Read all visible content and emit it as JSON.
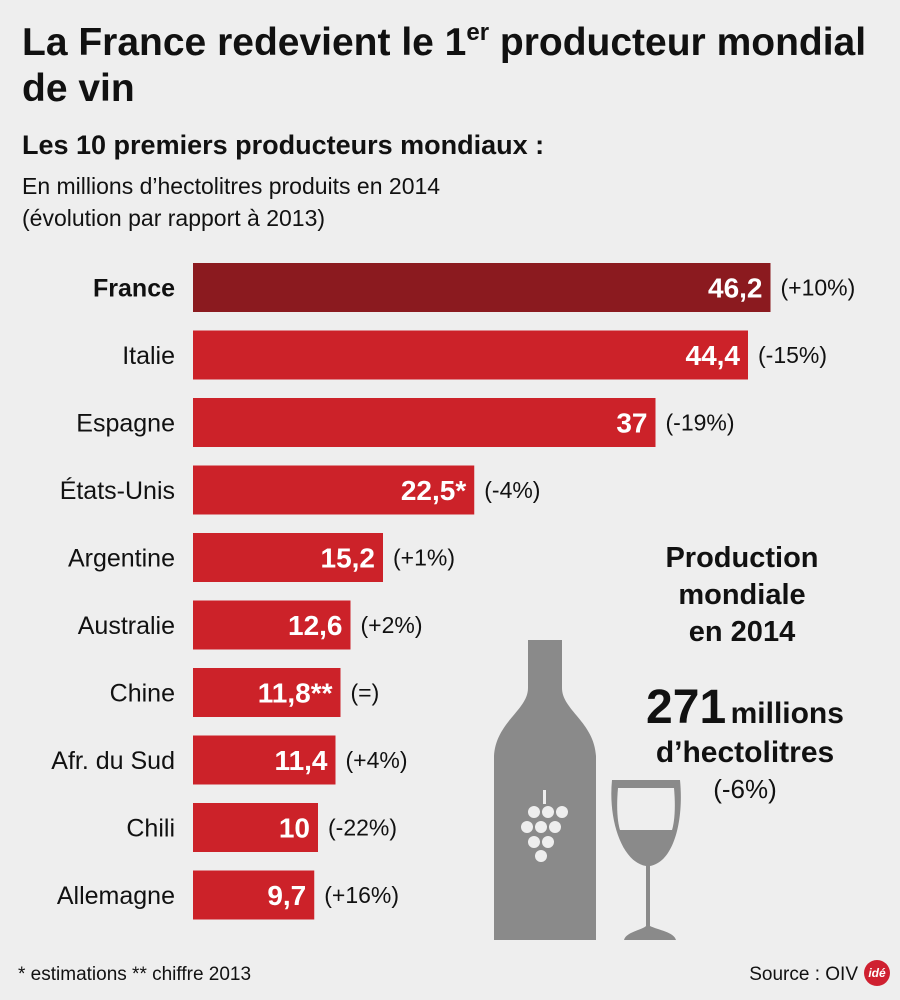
{
  "header": {
    "title_part1": "La France redevient le 1",
    "title_sup": "er",
    "title_part2": " producteur mondial de vin",
    "subtitle": "Les 10 premiers producteurs mondiaux :",
    "desc_line1": "En millions d’hectolitres produits en 2014",
    "desc_line2": "(évolution par rapport à 2013)"
  },
  "colors": {
    "highlight_bar": "#8b1a1f",
    "bar": "#cc2229",
    "background": "#eeeeee",
    "illustration": "#8a8a8a"
  },
  "chart_data": {
    "type": "bar",
    "orientation": "horizontal",
    "categories": [
      "France",
      "Italie",
      "Espagne",
      "États-Unis",
      "Argentine",
      "Australie",
      "Chine",
      "Afr. du Sud",
      "Chili",
      "Allemagne"
    ],
    "values": [
      46.2,
      44.4,
      37,
      22.5,
      15.2,
      12.6,
      11.8,
      11.4,
      10,
      9.7
    ],
    "value_labels": [
      "46,2",
      "44,4",
      "37",
      "22,5*",
      "15,2",
      "12,6",
      "11,8**",
      "11,4",
      "10",
      "9,7"
    ],
    "changes": [
      "(+10%)",
      "(-15%)",
      "(-19%)",
      "(-4%)",
      "(+1%)",
      "(+2%)",
      "(=)",
      "(+4%)",
      "(-22%)",
      "(+16%)"
    ],
    "highlight": "France",
    "grid": false
  },
  "side": {
    "heading_line1": "Production",
    "heading_line2": "mondiale",
    "heading_line3": "en 2014",
    "total_value": "271",
    "total_unit": "millions",
    "total_unit2": "d’hectolitres",
    "total_change": "(-6%)",
    "illustration": "wine-bottle-and-glass-icon"
  },
  "footer": {
    "footnote": "* estimations  ** chiffre 2013",
    "source": "Source : OIV",
    "logo": "idé"
  }
}
